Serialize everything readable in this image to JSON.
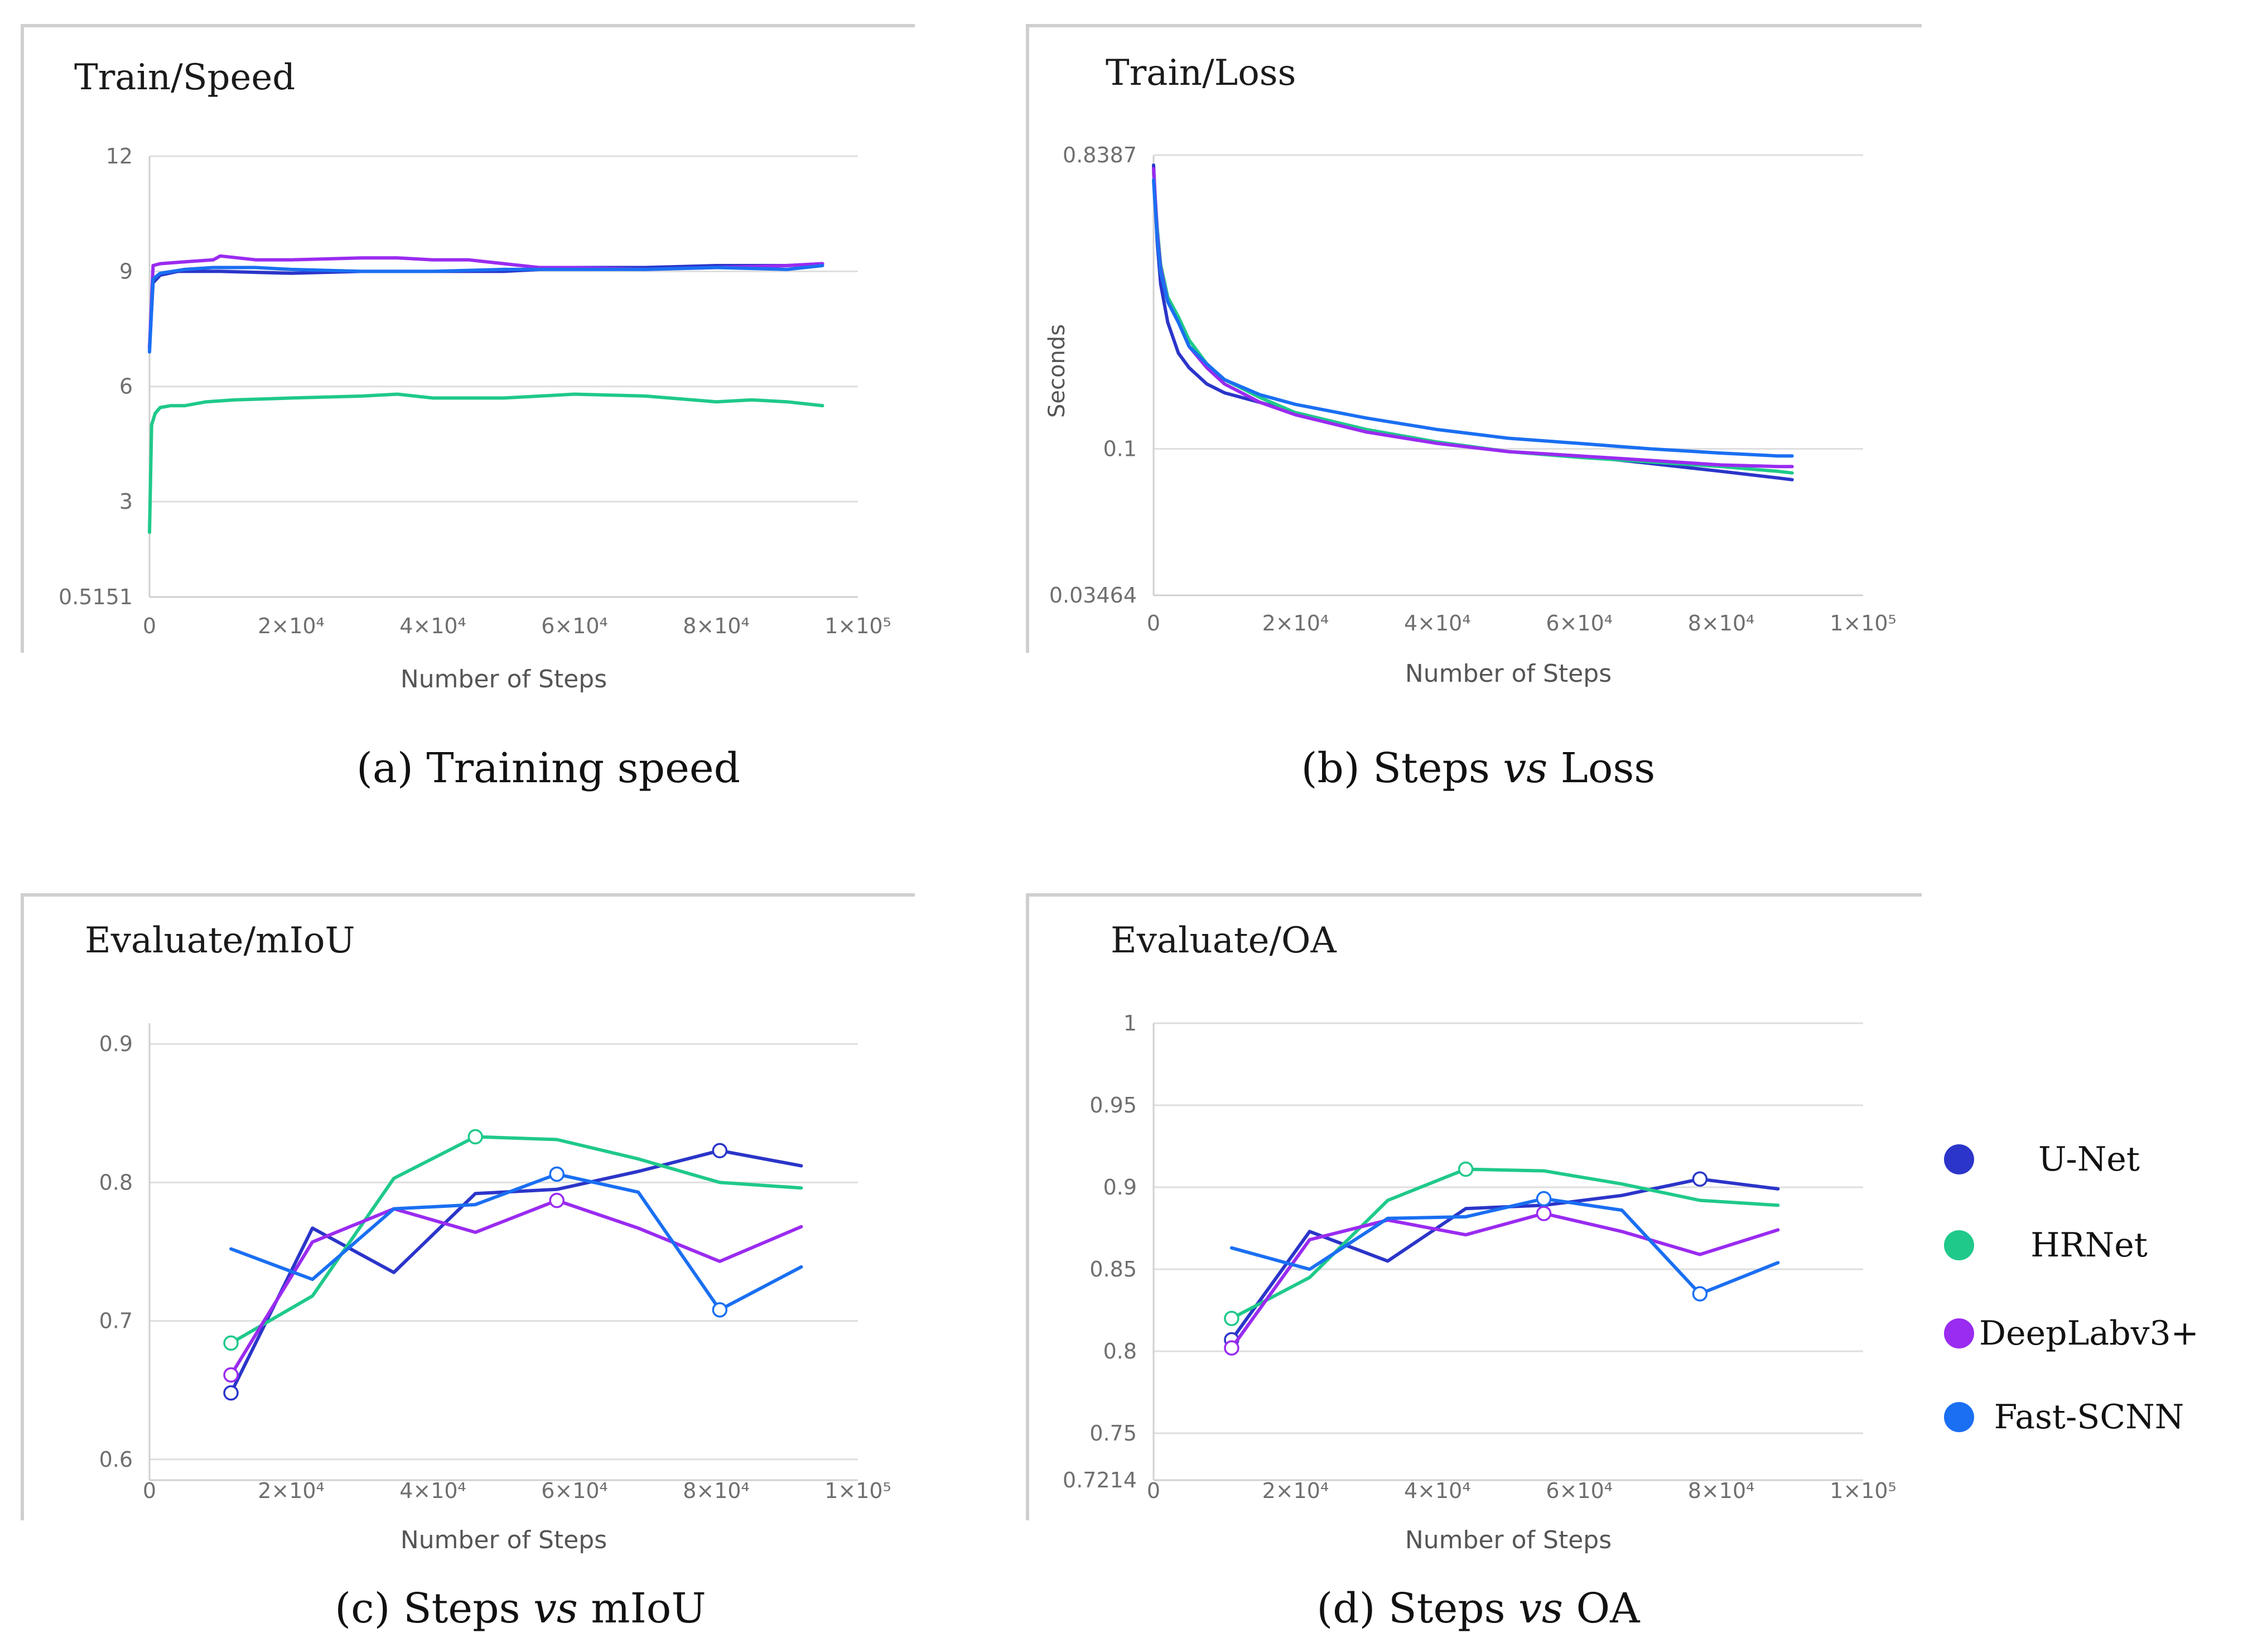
{
  "chart_data": [
    {
      "type": "line",
      "title": "Train/Speed",
      "caption": "(a) Training speed",
      "xlabel": "Number of Steps",
      "ylabel": "",
      "xlim": [
        0,
        100000
      ],
      "ylim": [
        0.5151,
        12
      ],
      "xticks": [
        "0",
        "2×10⁴",
        "4×10⁴",
        "6×10⁴",
        "8×10⁴",
        "1×10⁵"
      ],
      "yticks": [
        {
          "v": 12,
          "label": "12"
        },
        {
          "v": 9,
          "label": "9"
        },
        {
          "v": 6,
          "label": "6"
        },
        {
          "v": 3,
          "label": "3"
        },
        {
          "v": 0.5151,
          "label": "0.5151"
        }
      ],
      "grid": true,
      "series": [
        {
          "name": "U-Net",
          "x": [
            0,
            500,
            1500,
            4000,
            10000,
            20000,
            30000,
            40000,
            50000,
            60000,
            70000,
            80000,
            90000,
            95000
          ],
          "y": [
            7.0,
            8.7,
            8.9,
            9.0,
            9.0,
            8.95,
            9.0,
            9.0,
            9.0,
            9.1,
            9.1,
            9.15,
            9.15,
            9.2
          ]
        },
        {
          "name": "HRNet",
          "x": [
            0,
            300,
            800,
            1500,
            3000,
            5000,
            8000,
            12000,
            20000,
            30000,
            35000,
            40000,
            50000,
            60000,
            70000,
            80000,
            85000,
            90000,
            95000
          ],
          "y": [
            2.2,
            5.0,
            5.3,
            5.45,
            5.5,
            5.5,
            5.6,
            5.65,
            5.7,
            5.75,
            5.8,
            5.7,
            5.7,
            5.8,
            5.75,
            5.6,
            5.65,
            5.6,
            5.5
          ]
        },
        {
          "name": "DeepLabv3+",
          "x": [
            0,
            500,
            1500,
            5000,
            9000,
            10000,
            15000,
            20000,
            30000,
            35000,
            40000,
            45000,
            50000,
            55000,
            60000,
            70000,
            80000,
            90000,
            95000
          ],
          "y": [
            7.0,
            9.15,
            9.2,
            9.25,
            9.3,
            9.4,
            9.3,
            9.3,
            9.35,
            9.35,
            9.3,
            9.3,
            9.2,
            9.1,
            9.1,
            9.05,
            9.1,
            9.15,
            9.2
          ]
        },
        {
          "name": "Fast-SCNN",
          "x": [
            0,
            500,
            1500,
            5000,
            9000,
            15000,
            20000,
            30000,
            40000,
            50000,
            60000,
            70000,
            80000,
            90000,
            95000
          ],
          "y": [
            6.9,
            8.8,
            8.95,
            9.05,
            9.1,
            9.1,
            9.05,
            9.0,
            9.0,
            9.05,
            9.05,
            9.05,
            9.1,
            9.05,
            9.15
          ]
        }
      ]
    },
    {
      "type": "line",
      "title": "Train/Loss",
      "caption_prefix": "(b) Steps ",
      "caption_emph": "vs",
      "caption_suffix": " Loss",
      "xlabel": "Number of Steps",
      "ylabel": "Seconds",
      "xlim": [
        0,
        100000
      ],
      "ylim": [
        0.03464,
        0.8387
      ],
      "yscale": "log",
      "xticks": [
        "0",
        "2×10⁴",
        "4×10⁴",
        "6×10⁴",
        "8×10⁴",
        "1×10⁵"
      ],
      "yticks": [
        {
          "v": 0.8387,
          "label": "0.8387"
        },
        {
          "v": 0.1,
          "label": "0.1"
        },
        {
          "v": 0.03464,
          "label": "0.03464"
        }
      ],
      "grid": true,
      "series": [
        {
          "name": "U-Net",
          "x": [
            0,
            500,
            1000,
            2000,
            3500,
            5000,
            7500,
            10000,
            15000,
            20000,
            30000,
            40000,
            50000,
            60000,
            70000,
            80000,
            88000,
            90000
          ],
          "y": [
            0.78,
            0.45,
            0.33,
            0.25,
            0.2,
            0.18,
            0.16,
            0.15,
            0.14,
            0.13,
            0.115,
            0.105,
            0.098,
            0.095,
            0.09,
            0.085,
            0.081,
            0.08
          ]
        },
        {
          "name": "HRNet",
          "x": [
            0,
            500,
            1000,
            2000,
            3500,
            5000,
            7500,
            10000,
            15000,
            20000,
            30000,
            40000,
            50000,
            60000,
            70000,
            80000,
            88000,
            90000
          ],
          "y": [
            0.74,
            0.5,
            0.38,
            0.3,
            0.26,
            0.22,
            0.185,
            0.165,
            0.145,
            0.13,
            0.115,
            0.105,
            0.098,
            0.094,
            0.091,
            0.088,
            0.085,
            0.084
          ]
        },
        {
          "name": "DeepLabv3+",
          "x": [
            0,
            500,
            1000,
            2000,
            3500,
            5000,
            7500,
            10000,
            15000,
            20000,
            30000,
            40000,
            50000,
            60000,
            70000,
            80000,
            88000,
            90000
          ],
          "y": [
            0.76,
            0.48,
            0.37,
            0.29,
            0.25,
            0.21,
            0.18,
            0.16,
            0.14,
            0.128,
            0.113,
            0.104,
            0.098,
            0.095,
            0.092,
            0.089,
            0.088,
            0.088
          ]
        },
        {
          "name": "Fast-SCNN",
          "x": [
            0,
            500,
            1000,
            2000,
            3500,
            5000,
            7500,
            10000,
            15000,
            20000,
            30000,
            40000,
            50000,
            60000,
            70000,
            80000,
            88000,
            90000
          ],
          "y": [
            0.7,
            0.46,
            0.36,
            0.29,
            0.25,
            0.21,
            0.185,
            0.165,
            0.148,
            0.138,
            0.125,
            0.115,
            0.108,
            0.104,
            0.1,
            0.097,
            0.095,
            0.095
          ]
        }
      ]
    },
    {
      "type": "line",
      "title": "Evaluate/mIoU",
      "caption_prefix": "(c) Steps ",
      "caption_emph": "vs",
      "caption_suffix": " mIoU",
      "xlabel": "Number of Steps",
      "ylabel": "",
      "xlim": [
        0,
        100000
      ],
      "ylim": [
        0.585,
        0.915
      ],
      "xticks": [
        "0",
        "2×10⁴",
        "4×10⁴",
        "6×10⁴",
        "8×10⁴",
        "1×10⁵"
      ],
      "yticks": [
        {
          "v": 0.9,
          "label": "0.9"
        },
        {
          "v": 0.8,
          "label": "0.8"
        },
        {
          "v": 0.7,
          "label": "0.7"
        },
        {
          "v": 0.6,
          "label": "0.6"
        }
      ],
      "grid": true,
      "series": [
        {
          "name": "U-Net",
          "x": [
            11500,
            23000,
            34500,
            46000,
            57500,
            69000,
            80500,
            92000
          ],
          "y": [
            0.648,
            0.767,
            0.735,
            0.792,
            0.795,
            0.808,
            0.823,
            0.812
          ],
          "markers": [
            0,
            6
          ]
        },
        {
          "name": "HRNet",
          "x": [
            11500,
            23000,
            34500,
            46000,
            57500,
            69000,
            80500,
            92000
          ],
          "y": [
            0.684,
            0.718,
            0.803,
            0.833,
            0.831,
            0.817,
            0.8,
            0.796
          ],
          "markers": [
            0,
            3
          ]
        },
        {
          "name": "DeepLabv3+",
          "x": [
            11500,
            23000,
            34500,
            46000,
            57500,
            69000,
            80500,
            92000
          ],
          "y": [
            0.661,
            0.757,
            0.781,
            0.764,
            0.787,
            0.767,
            0.743,
            0.768
          ],
          "markers": [
            0,
            4
          ]
        },
        {
          "name": "Fast-SCNN",
          "x": [
            11500,
            23000,
            34500,
            46000,
            57500,
            69000,
            80500,
            92000
          ],
          "y": [
            0.752,
            0.73,
            0.781,
            0.784,
            0.806,
            0.793,
            0.708,
            0.739
          ],
          "markers": [
            4,
            6
          ]
        }
      ]
    },
    {
      "type": "line",
      "title": "Evaluate/OA",
      "caption_prefix": "(d) Steps ",
      "caption_emph": "vs",
      "caption_suffix": " OA",
      "xlabel": "Number of Steps",
      "ylabel": "",
      "xlim": [
        0,
        100000
      ],
      "ylim": [
        0.7214,
        1
      ],
      "xticks": [
        "0",
        "2×10⁴",
        "4×10⁴",
        "6×10⁴",
        "8×10⁴",
        "1×10⁵"
      ],
      "yticks": [
        {
          "v": 1,
          "label": "1"
        },
        {
          "v": 0.95,
          "label": "0.95"
        },
        {
          "v": 0.9,
          "label": "0.9"
        },
        {
          "v": 0.85,
          "label": "0.85"
        },
        {
          "v": 0.8,
          "label": "0.8"
        },
        {
          "v": 0.75,
          "label": "0.75"
        },
        {
          "v": 0.7214,
          "label": "0.7214"
        }
      ],
      "grid": true,
      "series": [
        {
          "name": "U-Net",
          "x": [
            11000,
            22000,
            33000,
            44000,
            55000,
            66000,
            77000,
            88000
          ],
          "y": [
            0.807,
            0.873,
            0.855,
            0.887,
            0.889,
            0.895,
            0.905,
            0.899
          ],
          "markers": [
            0,
            6
          ]
        },
        {
          "name": "HRNet",
          "x": [
            11000,
            22000,
            33000,
            44000,
            55000,
            66000,
            77000,
            88000
          ],
          "y": [
            0.82,
            0.845,
            0.892,
            0.911,
            0.91,
            0.902,
            0.892,
            0.889
          ],
          "markers": [
            0,
            3
          ]
        },
        {
          "name": "DeepLabv3+",
          "x": [
            11000,
            22000,
            33000,
            44000,
            55000,
            66000,
            77000,
            88000
          ],
          "y": [
            0.802,
            0.868,
            0.88,
            0.871,
            0.884,
            0.873,
            0.859,
            0.874
          ],
          "markers": [
            0,
            4
          ]
        },
        {
          "name": "Fast-SCNN",
          "x": [
            11000,
            22000,
            33000,
            44000,
            55000,
            66000,
            77000,
            88000
          ],
          "y": [
            0.863,
            0.85,
            0.881,
            0.882,
            0.893,
            0.886,
            0.835,
            0.854
          ],
          "markers": [
            4,
            6
          ]
        }
      ]
    }
  ],
  "legend": {
    "placement": "right",
    "items": [
      {
        "name": "U-Net",
        "color": "#2b35c9"
      },
      {
        "name": "HRNet",
        "color": "#1fc98a"
      },
      {
        "name": "DeepLabv3+",
        "color": "#9a2bf0"
      },
      {
        "name": "Fast-SCNN",
        "color": "#1a6ff2"
      }
    ]
  },
  "colors": {
    "U-Net": "#2b35c9",
    "HRNet": "#1fc98a",
    "DeepLabv3+": "#9a2bf0",
    "Fast-SCNN": "#1a6ff2"
  }
}
